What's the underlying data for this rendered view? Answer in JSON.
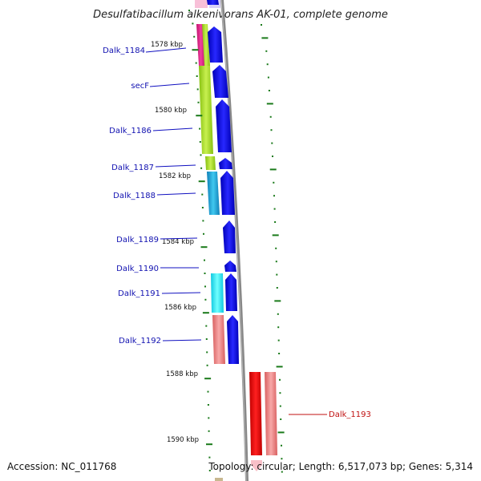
{
  "title": "Desulfatibacillum alkenivorans AK-01, complete genome",
  "accession_text": "Accession: NC_011768",
  "topology_text": "Topology: circular; Length: 6,517,073 bp; Genes: 5,314",
  "kbp_labels": [
    "1578 kbp",
    "1580 kbp",
    "1582 kbp",
    "1584 kbp",
    "1586 kbp",
    "1588 kbp",
    "1590 kbp"
  ],
  "gene_labels_left": [
    "Dalk_1184",
    "secF",
    "Dalk_1186",
    "Dalk_1187",
    "Dalk_1188",
    "Dalk_1189",
    "Dalk_1190",
    "Dalk_1191",
    "Dalk_1192"
  ],
  "gene_labels_right": [
    "Dalk_1193"
  ],
  "colors": {
    "forward_strand": "#0000e0",
    "reverse_strand": "#e00000",
    "backbone": "#888888",
    "tick": "#1a7a1a",
    "magenta": "#e0207a",
    "lime": "#a8e020",
    "cyan": "#20a8d8",
    "aqua": "#20e8f0",
    "salmon": "#f08080"
  }
}
